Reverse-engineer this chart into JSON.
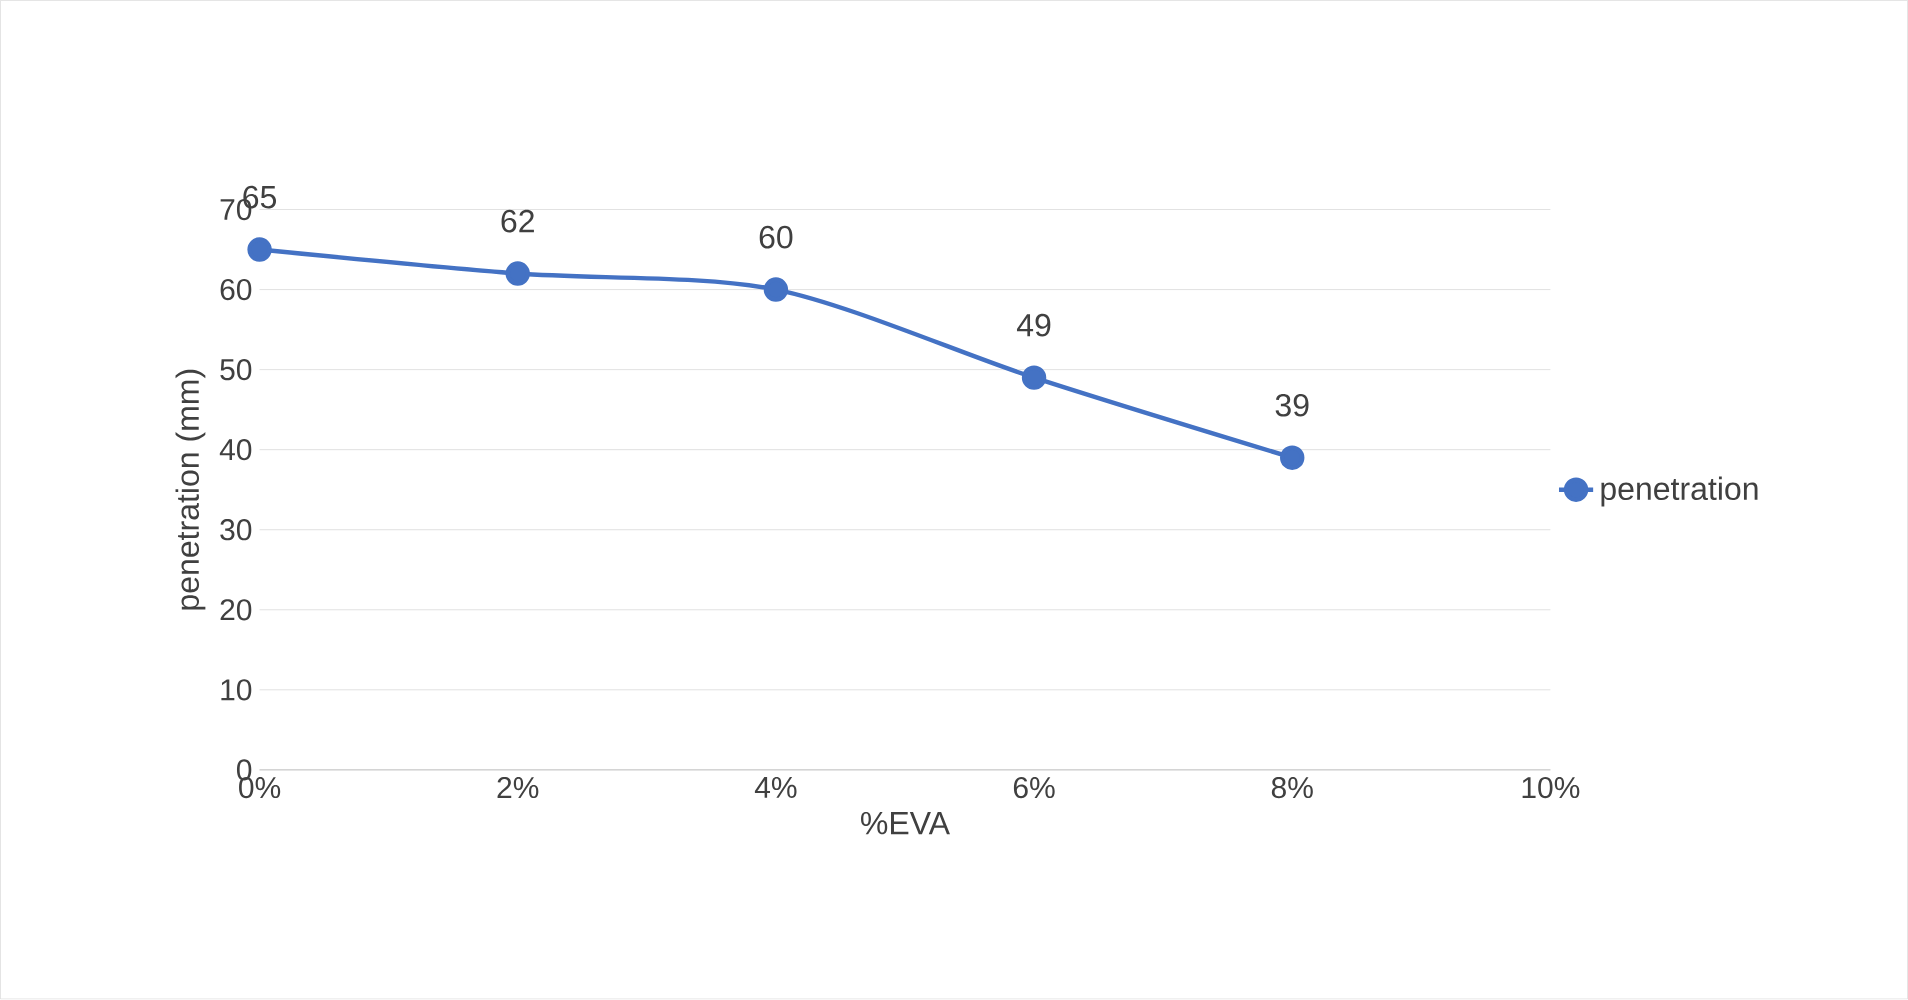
{
  "chart_data": {
    "type": "line",
    "xlabel": "%EVA",
    "ylabel": "penetration (mm)",
    "x": [
      0,
      2,
      4,
      6,
      8
    ],
    "series": [
      {
        "name": "penetration",
        "color": "#4472c4",
        "values": [
          65,
          62,
          60,
          49,
          39
        ]
      }
    ],
    "xlim": [
      0,
      10
    ],
    "xticks": [
      {
        "value": 0,
        "label": "0%"
      },
      {
        "value": 2,
        "label": "2%"
      },
      {
        "value": 4,
        "label": "4%"
      },
      {
        "value": 6,
        "label": "6%"
      },
      {
        "value": 8,
        "label": "8%"
      },
      {
        "value": 10,
        "label": "10%"
      }
    ],
    "ylim": [
      0,
      70
    ],
    "yticks": [
      0,
      10,
      20,
      30,
      40,
      50,
      60,
      70
    ],
    "grid": "y",
    "legend": "right",
    "marker": "circle",
    "line_style": "solid",
    "data_labels": true
  }
}
